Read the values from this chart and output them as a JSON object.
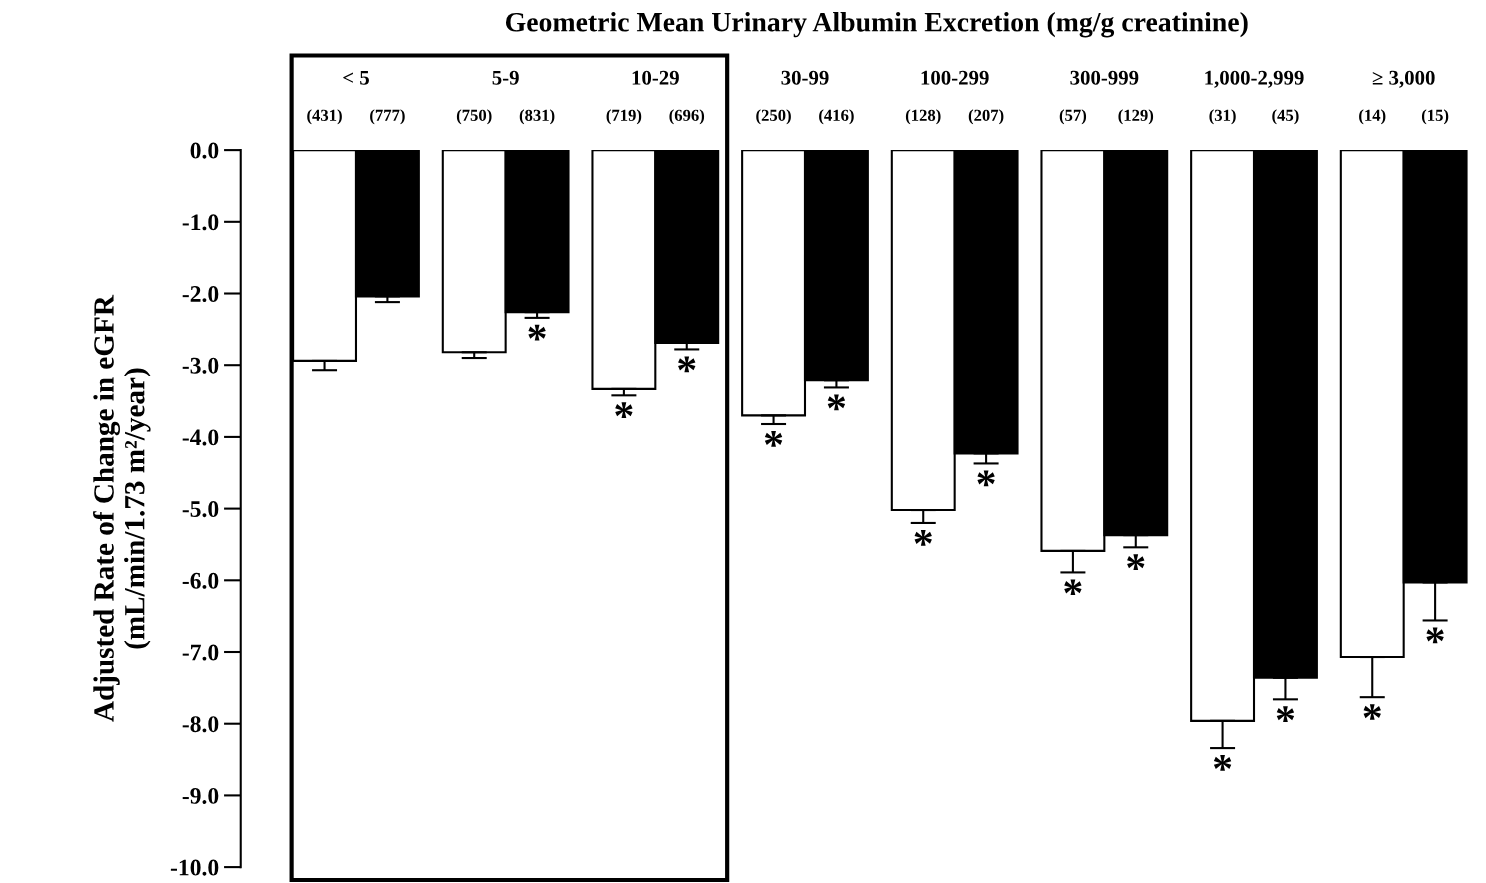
{
  "chart_data": {
    "type": "bar",
    "title": "Geometric Mean Urinary Albumin Excretion (mg/g creatinine)",
    "ylabel": "Adjusted Rate of Change in eGFR\n(mL/min/1.73 m²/year)",
    "categories": [
      "< 5",
      "5-9",
      "10-29",
      "30-99",
      "100-299",
      "300-999",
      "1,000-2,999",
      "≥ 3,000"
    ],
    "series": [
      {
        "color": "#ffffff",
        "values": [
          -2.94,
          -2.82,
          -3.33,
          -3.7,
          -5.02,
          -5.59,
          -7.96,
          -7.07
        ],
        "errors": [
          [
            -3.07,
            -2.94
          ],
          [
            -2.9,
            -2.82
          ],
          [
            -3.42,
            -3.33
          ],
          [
            -3.82,
            -3.7
          ],
          [
            -5.2,
            -5.02
          ],
          [
            -5.89,
            -5.59
          ],
          [
            -8.34,
            -7.96
          ],
          [
            -7.63,
            -7.07
          ]
        ],
        "value_labels": [
          null,
          null,
          "*",
          "*",
          "*",
          "*",
          "*",
          "*"
        ]
      },
      {
        "color": "#000000",
        "values": [
          -2.04,
          -2.26,
          -2.69,
          -3.21,
          -4.23,
          -5.37,
          -7.36,
          -6.03
        ],
        "errors": [
          [
            -2.12,
            -2.04
          ],
          [
            -2.34,
            -2.26
          ],
          [
            -2.78,
            -2.69
          ],
          [
            -3.31,
            -3.21
          ],
          [
            -4.37,
            -4.23
          ],
          [
            -5.54,
            -5.37
          ],
          [
            -7.66,
            -7.36
          ],
          [
            -6.56,
            -6.03
          ]
        ],
        "value_labels": [
          null,
          "*",
          "*",
          "*",
          "*",
          "*",
          "*",
          "*"
        ]
      }
    ],
    "annotations": [
      "(431)",
      "(777)",
      "(750)",
      "(831)",
      "(719)",
      "(696)",
      "(250)",
      "(416)",
      "(128)",
      "(207)",
      "(57)",
      "(129)",
      "(31)",
      "(45)",
      "(14)",
      "(15)"
    ],
    "ylim": [
      -10,
      0
    ],
    "yticks": [
      {
        "value": 0,
        "label": "0.0"
      },
      {
        "value": -1,
        "label": "-1.0"
      },
      {
        "value": -2,
        "label": "-2.0"
      },
      {
        "value": -3,
        "label": "-3.0"
      },
      {
        "value": -4,
        "label": "-4.0"
      },
      {
        "value": -5,
        "label": "-5.0"
      },
      {
        "value": -6,
        "label": "-6.0"
      },
      {
        "value": -7,
        "label": "-7.0"
      },
      {
        "value": -8,
        "label": "-8.0"
      },
      {
        "value": -9,
        "label": "-9.0"
      },
      {
        "value": -10,
        "label": "-10.0"
      }
    ],
    "grid": false,
    "legend": false
  }
}
